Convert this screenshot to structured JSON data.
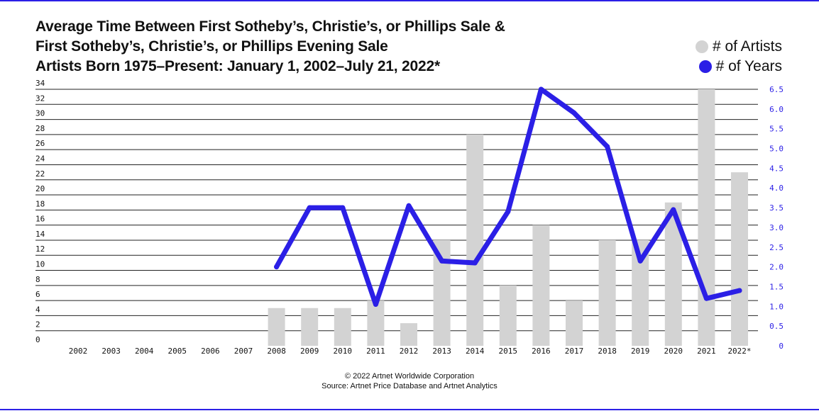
{
  "title": {
    "line1": "Average Time Between First Sotheby’s, Christie’s, or Phillips Sale &",
    "line2": "First Sotheby’s, Christie’s, or Phillips Evening Sale",
    "line3": "Artists Born 1975–Present: January 1, 2002–July 21, 2022*"
  },
  "legend": {
    "artists_label": "# of Artists",
    "years_label": "# of Years"
  },
  "colors": {
    "bar": "#d3d3d3",
    "line": "#2b1fe6",
    "grid": "#222222",
    "right_axis_text": "#2b1fe6"
  },
  "footer": {
    "copyright": "© 2022 Artnet Worldwide Corporation",
    "source": "Source: Artnet Price Database and Artnet Analytics"
  },
  "chart_data": {
    "type": "bar",
    "categories": [
      "2002",
      "2003",
      "2004",
      "2005",
      "2006",
      "2007",
      "2008",
      "2009",
      "2010",
      "2011",
      "2012",
      "2013",
      "2014",
      "2015",
      "2016",
      "2017",
      "2018",
      "2019",
      "2020",
      "2021",
      "2022*"
    ],
    "series": [
      {
        "name": "# of Artists",
        "type": "bar",
        "axis": "left",
        "values": [
          0,
          0,
          0,
          0,
          0,
          0,
          5,
          5,
          5,
          6,
          3,
          14,
          28,
          8,
          16,
          6,
          14,
          14,
          19,
          34,
          23
        ]
      },
      {
        "name": "# of Years",
        "type": "line",
        "axis": "right",
        "values": [
          null,
          null,
          null,
          null,
          null,
          null,
          2.0,
          3.5,
          3.5,
          1.05,
          3.55,
          2.15,
          2.1,
          3.4,
          6.5,
          5.9,
          5.05,
          2.15,
          3.45,
          1.2,
          1.4
        ]
      }
    ],
    "left_axis": {
      "ylim": [
        0,
        34
      ],
      "ticks": [
        0,
        2,
        4,
        6,
        8,
        10,
        12,
        14,
        16,
        18,
        20,
        22,
        24,
        26,
        28,
        30,
        32,
        34
      ]
    },
    "right_axis": {
      "ylim": [
        0,
        6.5
      ],
      "ticks": [
        "0",
        "0.5",
        "1.0",
        "1.5",
        "2.0",
        "2.5",
        "3.0",
        "3.5",
        "4.0",
        "4.5",
        "5.0",
        "5.5",
        "6.0",
        "6.5"
      ]
    },
    "grid": true,
    "legend_position": "top-right"
  }
}
